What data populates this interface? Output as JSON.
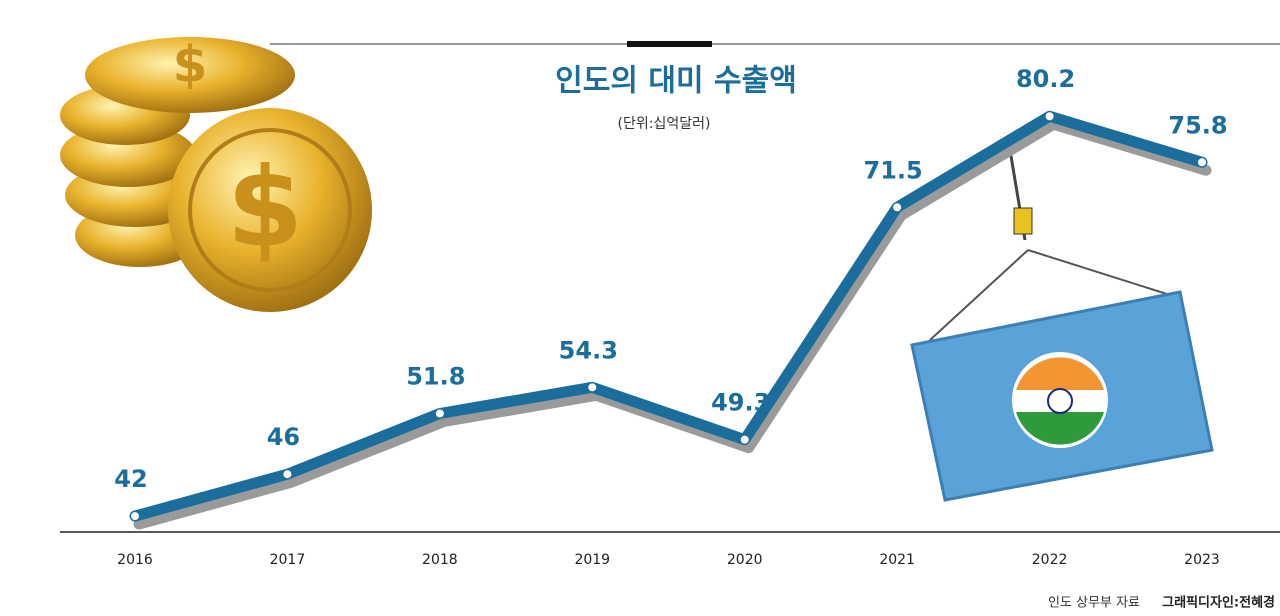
{
  "chart_data": {
    "type": "line",
    "title": "인도의 대미 수출액",
    "subtitle": "(단위:십억달러)",
    "categories": [
      "2016",
      "2017",
      "2018",
      "2019",
      "2020",
      "2021",
      "2022",
      "2023"
    ],
    "values": [
      42,
      46,
      51.8,
      54.3,
      49.3,
      71.5,
      80.2,
      75.8
    ],
    "color": "#1b6d9c",
    "ylim": [
      40,
      85
    ],
    "source": "인도 상무부 자료",
    "credit": "그래픽디자인:전혜경"
  }
}
